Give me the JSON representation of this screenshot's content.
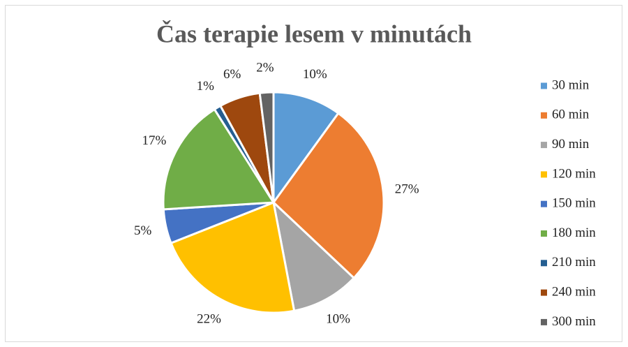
{
  "chart_data": {
    "type": "pie",
    "title": "Čas terapie lesem v minutách",
    "categories": [
      "30 min",
      "60 min",
      "90 min",
      "120 min",
      "150 min",
      "180 min",
      "210 min",
      "240 min",
      "300 min"
    ],
    "values": [
      10,
      27,
      10,
      22,
      5,
      17,
      1,
      6,
      2
    ],
    "value_labels": [
      "10%",
      "27%",
      "10%",
      "22%",
      "5%",
      "17%",
      "1%",
      "6%",
      "2%"
    ],
    "colors": [
      "#5b9bd5",
      "#ed7d31",
      "#a5a5a5",
      "#ffc000",
      "#4472c4",
      "#70ad47",
      "#255e91",
      "#9e480e",
      "#636363"
    ],
    "legend": "right"
  }
}
